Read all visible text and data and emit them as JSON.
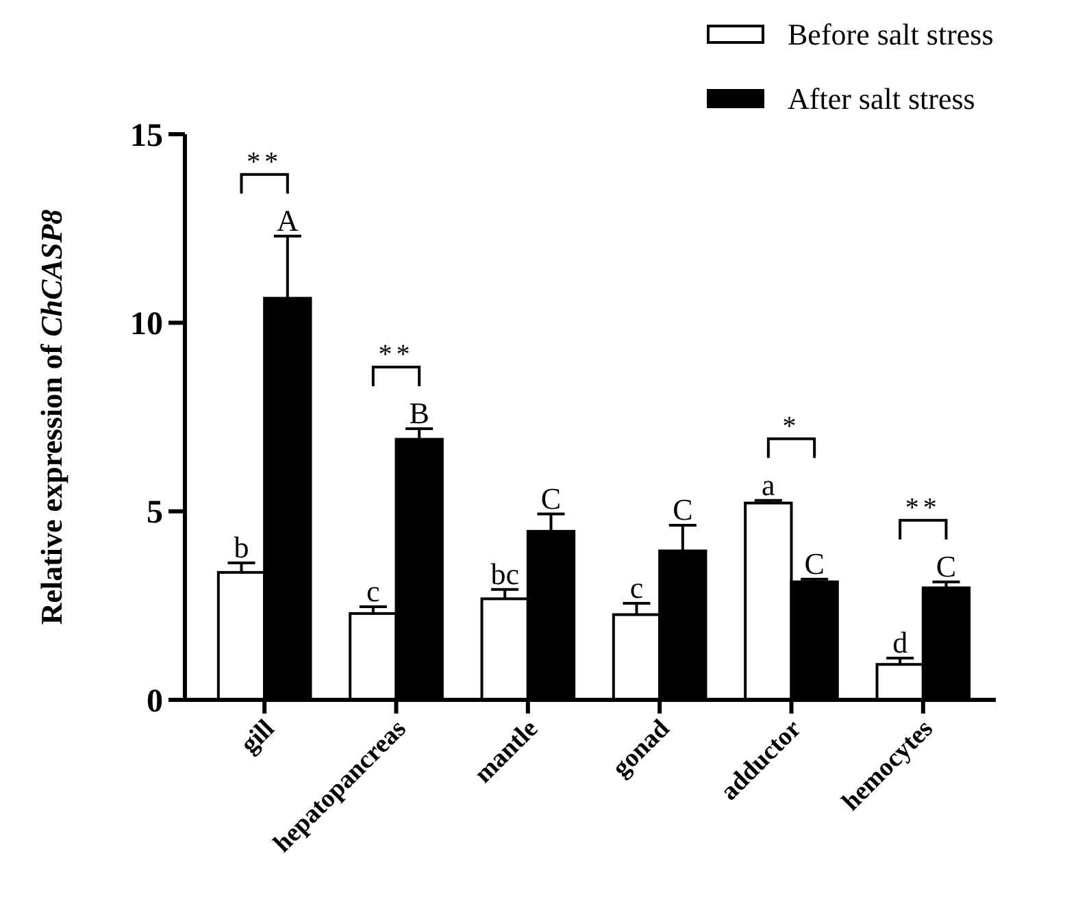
{
  "chart_data": {
    "type": "bar",
    "ylabel": "Relative expression of ChCASP8",
    "categories": [
      "gill",
      "hepatopancreas",
      "mantle",
      "gonad",
      "adductor",
      "hemocytes"
    ],
    "series": [
      {
        "name": "Before salt stress",
        "color": "#ffffff",
        "values": [
          3.38,
          2.29,
          2.68,
          2.26,
          5.22,
          0.94
        ],
        "errors": [
          0.25,
          0.18,
          0.25,
          0.3,
          0.07,
          0.17
        ]
      },
      {
        "name": "After salt stress",
        "color": "#000000",
        "values": [
          10.65,
          6.91,
          4.47,
          3.95,
          3.13,
          2.97
        ],
        "errors": [
          1.65,
          0.28,
          0.46,
          0.68,
          0.07,
          0.16
        ]
      }
    ],
    "ylim": [
      0,
      15
    ],
    "yticks": [
      0,
      5,
      10,
      15
    ],
    "grid": false,
    "legend": "top right",
    "annotations": [
      {
        "text": "b",
        "x": "gill",
        "y": 3.38
      },
      {
        "text": "A",
        "x": "gill",
        "y": 10.65
      },
      "**",
      {
        "text": "c",
        "x": "hepatopancreas",
        "y": 2.29
      },
      {
        "text": "B",
        "x": "hepatopancreas",
        "y": 6.91
      },
      "**",
      {
        "text": "bc",
        "x": "mantle",
        "y": 2.68
      },
      {
        "text": "C",
        "x": "mantle",
        "y": 4.47
      },
      {
        "text": "c",
        "x": "gonad",
        "y": 2.26
      },
      {
        "text": "C",
        "x": "gonad",
        "y": 3.95
      },
      {
        "text": "a",
        "x": "adductor",
        "y": 5.22
      },
      {
        "text": "C",
        "x": "adductor",
        "y": 3.13
      },
      "*",
      {
        "text": "d",
        "x": "hemocytes",
        "y": 0.94
      },
      {
        "text": "C",
        "x": "hemocytes",
        "y": 2.97
      },
      "**"
    ]
  }
}
